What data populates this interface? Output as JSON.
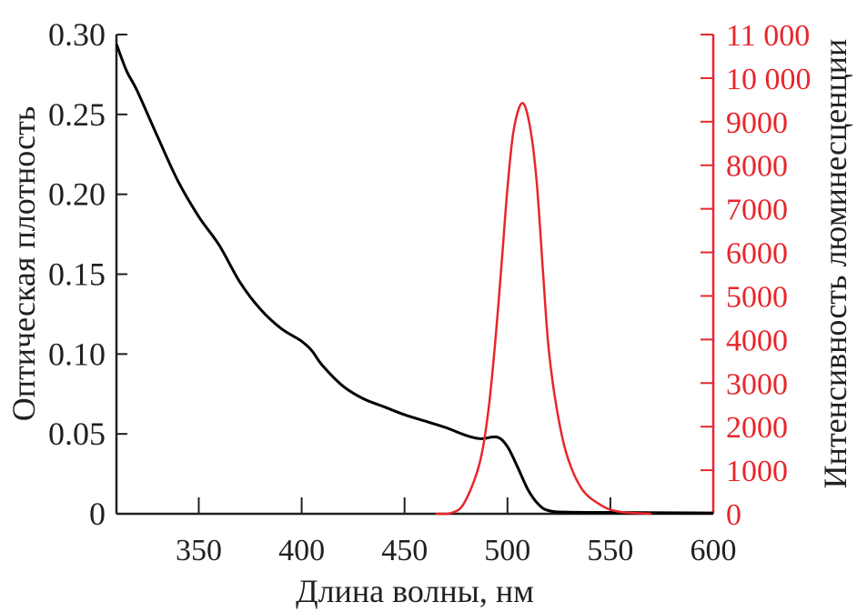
{
  "chart_data": {
    "type": "line",
    "title": "",
    "xlabel": "Длина волны, нм",
    "ylabel_left": "Оптическая плотность",
    "ylabel_right": "Интенсивность люминесценции",
    "xlim": [
      310,
      600
    ],
    "ylim_left": [
      0,
      0.3
    ],
    "ylim_right": [
      0,
      11000
    ],
    "x_ticks": [
      "350",
      "400",
      "450",
      "500",
      "550",
      "600"
    ],
    "x_tick_values": [
      350,
      400,
      450,
      500,
      550,
      600
    ],
    "y_left_ticks": [
      "0",
      "0.05",
      "0.10",
      "0.15",
      "0.20",
      "0.25",
      "0.30"
    ],
    "y_left_tick_values": [
      0,
      0.05,
      0.1,
      0.15,
      0.2,
      0.25,
      0.3
    ],
    "y_right_ticks": [
      "0",
      "1000",
      "2000",
      "3000",
      "4000",
      "5000",
      "6000",
      "7000",
      "8000",
      "9000",
      "10 000",
      "11 000"
    ],
    "y_right_tick_values": [
      0,
      1000,
      2000,
      3000,
      4000,
      5000,
      6000,
      7000,
      8000,
      9000,
      10000,
      11000
    ],
    "grid": false,
    "colors": {
      "absorption": "#000000",
      "luminescence": "#e8262c",
      "right_axis": "#e8262c"
    },
    "series": [
      {
        "axis": "left",
        "color": "#000000",
        "x": [
          310,
          315,
          320,
          330,
          340,
          350,
          360,
          370,
          380,
          390,
          400,
          405,
          410,
          420,
          430,
          440,
          450,
          460,
          470,
          480,
          487,
          495,
          500,
          505,
          510,
          515,
          520,
          530,
          560,
          600
        ],
        "y": [
          0.294,
          0.277,
          0.265,
          0.236,
          0.208,
          0.186,
          0.168,
          0.145,
          0.128,
          0.116,
          0.108,
          0.102,
          0.093,
          0.08,
          0.072,
          0.067,
          0.062,
          0.058,
          0.054,
          0.049,
          0.047,
          0.048,
          0.042,
          0.029,
          0.015,
          0.006,
          0.002,
          0.001,
          0.0008,
          0.0005
        ]
      },
      {
        "axis": "right",
        "color": "#e8262c",
        "x": [
          465,
          472.8,
          479,
          486.4,
          490.8,
          494.4,
          497.4,
          500,
          503,
          507.2,
          511,
          514.2,
          517.3,
          520,
          524,
          528.8,
          536,
          545,
          554,
          570
        ],
        "y": [
          0,
          20,
          250,
          1150,
          2400,
          4130,
          5890,
          7470,
          8800,
          9430,
          8870,
          7620,
          5530,
          3800,
          2400,
          1360,
          580,
          210,
          50,
          0
        ]
      }
    ]
  }
}
